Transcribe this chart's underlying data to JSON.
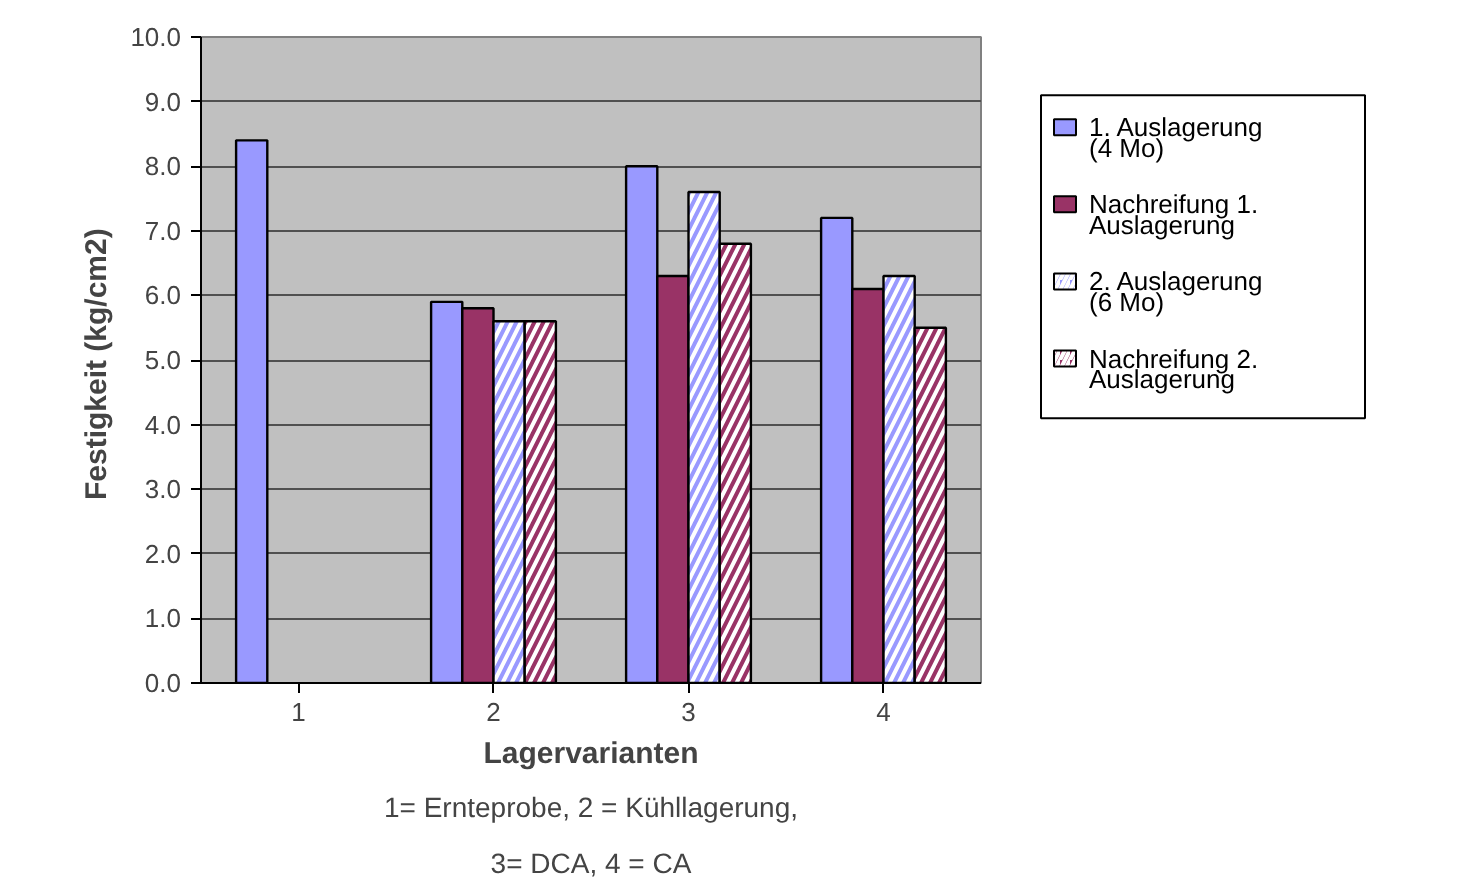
{
  "chart_data": {
    "type": "bar",
    "xlabel": "Lagervarianten",
    "ylabel": "Festigkeit  (kg/cm2)",
    "categories": [
      "1",
      "2",
      "3",
      "4"
    ],
    "series": [
      {
        "name": "1. Auslagerung (4 Mo)",
        "color": "#9999ff",
        "values": [
          8.4,
          5.9,
          8.0,
          7.2
        ]
      },
      {
        "name": "Nachreifung 1. Auslagerung",
        "color": "#993366",
        "values": [
          null,
          5.8,
          6.3,
          6.1
        ]
      },
      {
        "name": "2. Auslagerung (6 Mo)",
        "color": "#9999ff",
        "values": [
          null,
          5.6,
          7.6,
          6.3
        ]
      },
      {
        "name": "Nachreifung 2. Auslagerung",
        "color": "#993366",
        "values": [
          null,
          5.6,
          6.8,
          5.5
        ]
      }
    ],
    "ylim": [
      0,
      10
    ],
    "yticks": [
      {
        "value": 0,
        "label": "0.0"
      },
      {
        "value": 1,
        "label": "1.0"
      },
      {
        "value": 2,
        "label": "2.0"
      },
      {
        "value": 3,
        "label": "3.0"
      },
      {
        "value": 4,
        "label": "4.0"
      },
      {
        "value": 5,
        "label": "5.0"
      },
      {
        "value": 6,
        "label": "6.0"
      },
      {
        "value": 7,
        "label": "7.0"
      },
      {
        "value": 8,
        "label": "8.0"
      },
      {
        "value": 9,
        "label": "9.0"
      },
      {
        "value": 10,
        "label": "10.0"
      }
    ],
    "grid": "y",
    "legend": "right",
    "annotations": [
      "1= Ernteprobe, 2 = Kühllagerung, 3= DCA, 4 = CA"
    ]
  }
}
